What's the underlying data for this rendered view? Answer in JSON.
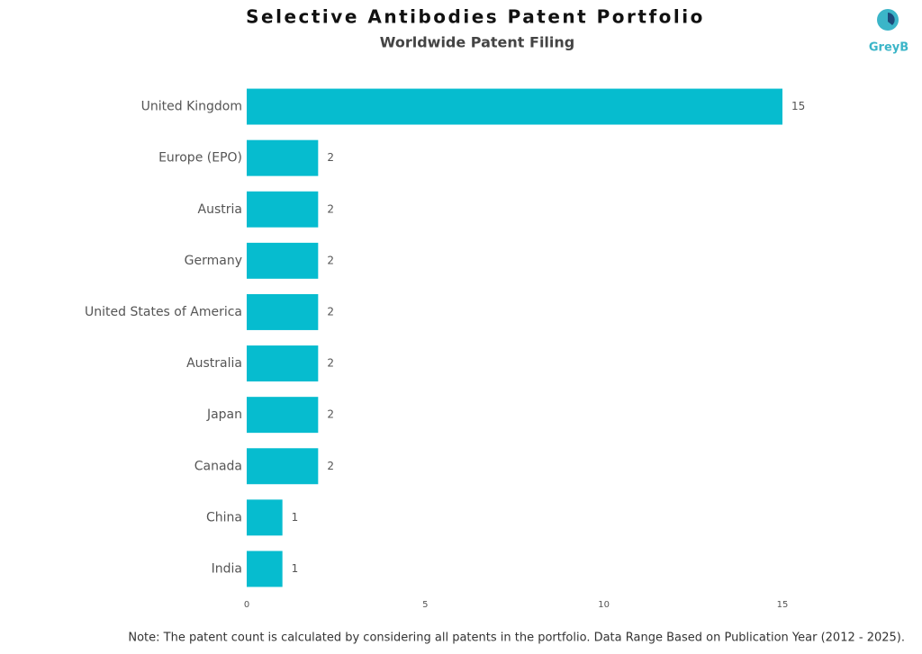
{
  "chart_data": {
    "type": "bar",
    "title": "Selective Antibodies Patent Portfolio",
    "subtitle": "Worldwide Patent Filing",
    "categories": [
      "United Kingdom",
      "Europe (EPO)",
      "Austria",
      "Germany",
      "United States of America",
      "Australia",
      "Japan",
      "Canada",
      "China",
      "India"
    ],
    "values": [
      15,
      2,
      2,
      2,
      2,
      2,
      2,
      2,
      1,
      1
    ],
    "color": "#06bccf",
    "xlim": [
      0,
      15
    ],
    "xticks": [
      0,
      5,
      10,
      15
    ],
    "grid": false,
    "note": "Note: The patent count is calculated by considering all patents in the portfolio. Data Range Based on Publication Year (2012 - 2025).",
    "logo": "GreyB"
  }
}
